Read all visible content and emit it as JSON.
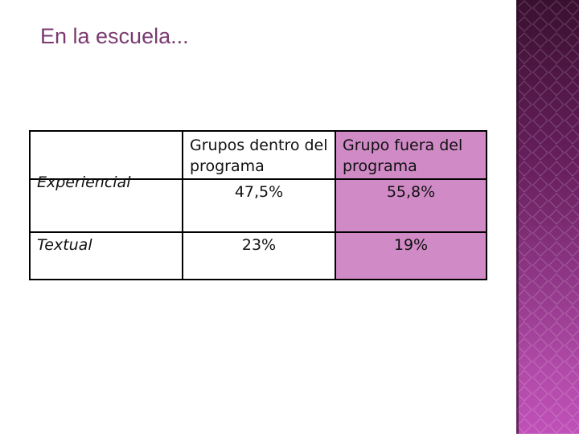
{
  "slide": {
    "title": "En la escuela..."
  },
  "table": {
    "headers": [
      "",
      "Grupos dentro del programa",
      "Grupo fuera del programa"
    ],
    "rows": [
      {
        "label": "Experiencial",
        "values": [
          "47,5%",
          "55,8%"
        ]
      },
      {
        "label": "Textual",
        "values": [
          "23%",
          "19%"
        ]
      }
    ]
  },
  "colors": {
    "title": "#7a3a70",
    "highlight_column": "#d08ac6",
    "side_band": "#8a2a80"
  }
}
